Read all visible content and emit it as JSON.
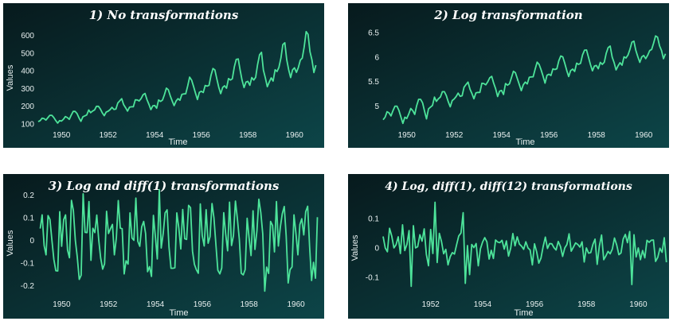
{
  "colors": {
    "line": "#4de39a",
    "bg_dark": "#071a1d",
    "bg_light": "#0d4548"
  },
  "chart_data": [
    {
      "type": "line",
      "title": "1) No transformations",
      "xlabel": "Time",
      "ylabel": "Values",
      "xlim": [
        1949.0,
        1961.0
      ],
      "ylim": [
        90,
        630
      ],
      "xticks": [
        1950,
        1952,
        1954,
        1956,
        1958,
        1960
      ],
      "yticks": [
        100,
        200,
        300,
        400,
        500,
        600
      ],
      "ytick_labels": [
        "100",
        "200",
        "300",
        "400",
        "500",
        "600"
      ],
      "series": [
        {
          "x_start": 1949.0,
          "x_step": 0.0833333,
          "values": [
            112,
            118,
            132,
            129,
            121,
            135,
            148,
            148,
            136,
            119,
            104,
            118,
            115,
            126,
            141,
            135,
            125,
            149,
            170,
            170,
            158,
            133,
            114,
            140,
            145,
            150,
            178,
            163,
            172,
            178,
            199,
            199,
            184,
            162,
            146,
            166,
            171,
            180,
            193,
            181,
            183,
            218,
            230,
            242,
            209,
            191,
            172,
            194,
            196,
            196,
            236,
            235,
            229,
            243,
            264,
            272,
            237,
            211,
            180,
            201,
            204,
            188,
            235,
            227,
            234,
            264,
            302,
            293,
            259,
            229,
            203,
            229,
            242,
            233,
            267,
            269,
            270,
            315,
            364,
            347,
            312,
            274,
            237,
            278,
            284,
            277,
            317,
            313,
            318,
            374,
            413,
            405,
            355,
            306,
            271,
            306,
            315,
            301,
            356,
            348,
            355,
            422,
            465,
            467,
            404,
            347,
            305,
            336,
            340,
            318,
            362,
            348,
            363,
            435,
            491,
            505,
            404,
            359,
            310,
            337,
            360,
            342,
            406,
            396,
            420,
            472,
            548,
            559,
            463,
            407,
            362,
            405,
            417,
            391,
            419,
            461,
            472,
            535,
            622,
            606,
            508,
            461,
            390,
            432
          ]
        }
      ]
    },
    {
      "type": "line",
      "title": "2) Log transformation",
      "xlabel": "Time",
      "ylabel": "",
      "xlim": [
        1949.0,
        1961.0
      ],
      "ylim": [
        4.6,
        6.55
      ],
      "xticks": [
        1950,
        1952,
        1954,
        1956,
        1958,
        1960
      ],
      "yticks": [
        5,
        5.5,
        6,
        6.5
      ],
      "ytick_labels": [
        "5",
        "5.5",
        "6",
        "6.5"
      ],
      "series": [
        {
          "x_start": 1949.0,
          "x_step": 0.0833333,
          "values": [
            4.718,
            4.771,
            4.883,
            4.86,
            4.796,
            4.905,
            4.997,
            4.997,
            4.913,
            4.779,
            4.644,
            4.771,
            4.745,
            4.836,
            4.949,
            4.905,
            4.828,
            5.004,
            5.136,
            5.136,
            5.063,
            4.89,
            4.736,
            4.942,
            4.977,
            5.011,
            5.182,
            5.094,
            5.147,
            5.182,
            5.293,
            5.293,
            5.215,
            5.088,
            4.984,
            5.112,
            5.142,
            5.193,
            5.263,
            5.198,
            5.209,
            5.384,
            5.438,
            5.489,
            5.342,
            5.252,
            5.147,
            5.268,
            5.278,
            5.278,
            5.464,
            5.46,
            5.434,
            5.493,
            5.576,
            5.606,
            5.468,
            5.352,
            5.193,
            5.303,
            5.318,
            5.236,
            5.46,
            5.425,
            5.455,
            5.576,
            5.71,
            5.68,
            5.557,
            5.434,
            5.313,
            5.434,
            5.489,
            5.451,
            5.587,
            5.595,
            5.598,
            5.753,
            5.897,
            5.849,
            5.743,
            5.613,
            5.468,
            5.628,
            5.649,
            5.624,
            5.759,
            5.746,
            5.762,
            5.924,
            6.023,
            6.004,
            5.872,
            5.724,
            5.602,
            5.724,
            5.753,
            5.707,
            5.875,
            5.852,
            5.872,
            6.045,
            6.142,
            6.146,
            6.001,
            5.849,
            5.72,
            5.817,
            5.829,
            5.762,
            5.892,
            5.852,
            5.894,
            6.075,
            6.196,
            6.225,
            6.001,
            5.883,
            5.737,
            5.82,
            5.886,
            5.835,
            6.006,
            5.981,
            6.04,
            6.157,
            6.306,
            6.326,
            6.138,
            6.009,
            5.892,
            6.004,
            6.033,
            5.969,
            6.038,
            6.133,
            6.157,
            6.283,
            6.433,
            6.407,
            6.23,
            6.133,
            5.966,
            6.068
          ]
        }
      ]
    },
    {
      "type": "line",
      "title": "3) Log and diff(1) transformations",
      "xlabel": "Time",
      "ylabel": "Values",
      "xlim": [
        1949.0,
        1961.0
      ],
      "ylim": [
        -0.24,
        0.215
      ],
      "xticks": [
        1950,
        1952,
        1954,
        1956,
        1958,
        1960
      ],
      "yticks": [
        -0.2,
        -0.1,
        0,
        0.1,
        0.2
      ],
      "ytick_labels": [
        "-0.2",
        "-0.1",
        "0",
        "0.1",
        "0.2"
      ],
      "series": [
        {
          "x_start": 1949.0833,
          "x_step": 0.0833333,
          "values": [
            0.052,
            0.112,
            -0.023,
            -0.064,
            0.109,
            0.092,
            0.0,
            -0.084,
            -0.134,
            -0.135,
            0.126,
            -0.026,
            0.091,
            0.112,
            -0.043,
            -0.077,
            0.176,
            0.132,
            0.0,
            -0.073,
            -0.172,
            -0.154,
            0.205,
            0.035,
            0.034,
            0.171,
            -0.088,
            0.053,
            0.034,
            0.111,
            0.0,
            -0.078,
            -0.127,
            -0.104,
            0.128,
            0.03,
            0.051,
            0.07,
            -0.064,
            0.011,
            0.175,
            0.054,
            0.051,
            -0.148,
            -0.09,
            -0.105,
            0.121,
            0.01,
            0.0,
            0.186,
            -0.004,
            -0.026,
            0.059,
            0.083,
            0.03,
            -0.138,
            -0.116,
            -0.159,
            0.11,
            0.015,
            -0.082,
            0.223,
            -0.034,
            0.03,
            0.121,
            0.134,
            -0.03,
            -0.123,
            -0.123,
            -0.121,
            0.121,
            0.055,
            -0.038,
            0.136,
            0.007,
            0.004,
            0.154,
            0.144,
            -0.048,
            -0.106,
            -0.13,
            -0.145,
            0.16,
            0.021,
            -0.025,
            0.135,
            -0.013,
            0.016,
            0.162,
            0.099,
            -0.02,
            -0.132,
            -0.148,
            -0.122,
            0.122,
            0.029,
            -0.046,
            0.168,
            -0.023,
            0.02,
            0.173,
            0.097,
            0.004,
            -0.145,
            -0.152,
            -0.129,
            0.097,
            0.012,
            -0.067,
            0.13,
            -0.04,
            0.042,
            0.181,
            0.121,
            0.028,
            -0.224,
            -0.118,
            -0.146,
            0.083,
            0.066,
            -0.051,
            0.171,
            -0.025,
            0.059,
            0.117,
            0.149,
            0.02,
            -0.188,
            -0.129,
            -0.117,
            0.112,
            0.029,
            -0.064,
            0.069,
            0.095,
            0.024,
            0.126,
            0.15,
            -0.026,
            -0.177,
            -0.097,
            -0.167,
            0.102
          ]
        }
      ]
    },
    {
      "type": "line",
      "title": "4) Log, diff(1), diff(12) transformations",
      "xlabel": "Time",
      "ylabel": "Values",
      "xlim": [
        1950.1667,
        1961.0
      ],
      "ylim": [
        -0.16,
        0.16
      ],
      "xticks": [
        1952,
        1954,
        1956,
        1958,
        1960
      ],
      "yticks": [
        -0.1,
        0,
        0.1
      ],
      "ytick_labels": [
        "-0.1",
        "0",
        "0.1"
      ],
      "series": [
        {
          "x_start": 1950.1667,
          "x_step": 0.0833333,
          "values": [
            0.039,
            0.0,
            -0.013,
            0.067,
            0.04,
            0.0,
            0.011,
            0.038,
            -0.019,
            0.079,
            -0.009,
            0.012,
            0.059,
            -0.131,
            0.076,
            0.0,
            0.004,
            0.045,
            0.023,
            0.065,
            -0.022,
            -0.061,
            0.063,
            -0.019,
            0.156,
            -0.05,
            0.05,
            0.022,
            -0.02,
            -0.005,
            -0.058,
            -0.03,
            -0.016,
            -0.021,
            0.011,
            0.041,
            0.051,
            0.12,
            -0.121,
            0.008,
            -0.091,
            0.012,
            0.001,
            0.015,
            -0.061,
            -0.003,
            0.02,
            0.035,
            0.021,
            -0.038,
            -0.008,
            -0.036,
            0.027,
            0.02,
            0.018,
            0.026,
            -0.004,
            0.024,
            -0.028,
            -0.001,
            0.049,
            0.007,
            0.038,
            0.013,
            0.006,
            -0.005,
            0.021,
            0.0,
            -0.007,
            -0.058,
            0.014,
            -0.013,
            -0.052,
            -0.035,
            0.004,
            0.037,
            -0.002,
            0.015,
            0.014,
            0.001,
            -0.007,
            0.022,
            0.005,
            -0.029,
            0.0,
            0.012,
            0.048,
            -0.011,
            0.003,
            0.017,
            0.012,
            0.003,
            0.021,
            -0.048,
            0.0,
            -0.018,
            -0.016,
            0.012,
            0.03,
            -0.056,
            0.006,
            0.044,
            -0.04,
            -0.027,
            -0.012,
            -0.02,
            -0.004,
            0.034,
            0.01,
            -0.023,
            -0.017,
            0.03,
            0.046,
            0.018,
            0.056,
            -0.125,
            0.045,
            -0.031,
            0.0,
            -0.04,
            -0.009,
            -0.034,
            0.026,
            0.019,
            0.026,
            0.027,
            -0.046,
            -0.032,
            -0.001,
            -0.015,
            0.035,
            -0.049
          ]
        }
      ]
    }
  ]
}
